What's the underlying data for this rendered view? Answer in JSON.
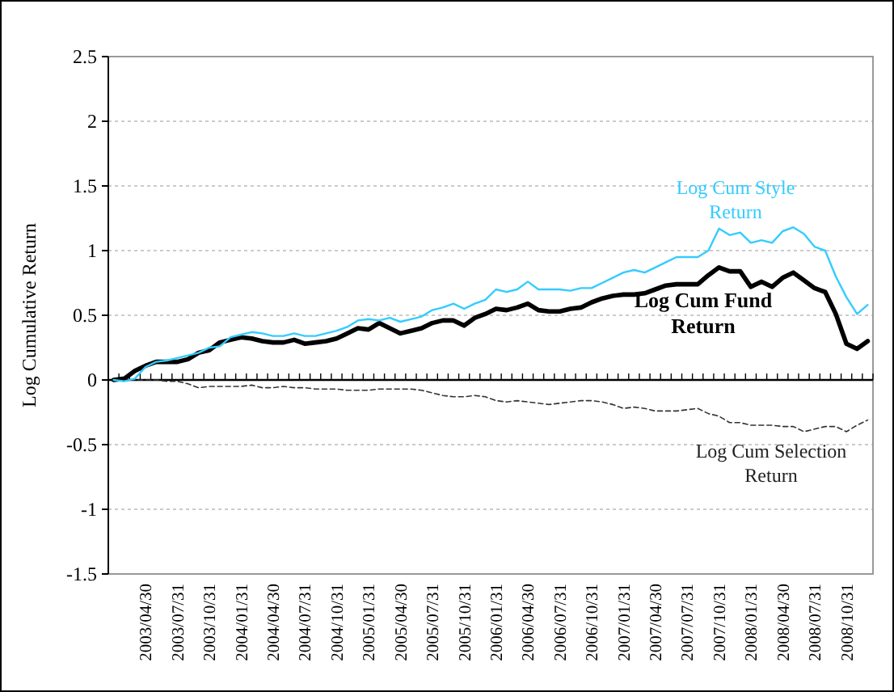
{
  "chart_data": {
    "type": "line",
    "ylabel": "Log Cumulative Return",
    "categories": [
      null,
      null,
      null,
      "2003/04/30",
      null,
      null,
      "2003/07/31",
      null,
      null,
      "2003/10/31",
      null,
      null,
      "2004/01/31",
      null,
      null,
      "2004/04/30",
      null,
      null,
      "2004/07/31",
      null,
      null,
      "2004/10/31",
      null,
      null,
      "2005/01/31",
      null,
      null,
      "2005/04/30",
      null,
      null,
      "2005/07/31",
      null,
      null,
      "2005/10/31",
      null,
      null,
      "2006/01/31",
      null,
      null,
      "2006/04/30",
      null,
      null,
      "2006/07/31",
      null,
      null,
      "2006/10/31",
      null,
      null,
      "2007/01/31",
      null,
      null,
      "2007/04/30",
      null,
      null,
      "2007/07/31",
      null,
      null,
      "2007/10/31",
      null,
      null,
      "2008/01/31",
      null,
      null,
      "2008/04/30",
      null,
      null,
      "2008/07/31",
      null,
      null,
      "2008/10/31",
      null,
      null
    ],
    "series": [
      {
        "name": "Log Cum Style Return",
        "color": "#33ccff",
        "values": [
          0,
          -0.01,
          0.01,
          0.1,
          0.14,
          0.15,
          0.17,
          0.19,
          0.21,
          0.25,
          0.26,
          0.33,
          0.35,
          0.37,
          0.36,
          0.34,
          0.34,
          0.36,
          0.34,
          0.34,
          0.36,
          0.38,
          0.41,
          0.46,
          0.47,
          0.46,
          0.48,
          0.45,
          0.47,
          0.49,
          0.54,
          0.56,
          0.59,
          0.55,
          0.59,
          0.62,
          0.7,
          0.68,
          0.7,
          0.76,
          0.7,
          0.7,
          0.7,
          0.69,
          0.71,
          0.71,
          0.75,
          0.79,
          0.83,
          0.85,
          0.83,
          0.87,
          0.91,
          0.95,
          0.95,
          0.95,
          1.0,
          1.17,
          1.12,
          1.14,
          1.06,
          1.08,
          1.06,
          1.15,
          1.18,
          1.13,
          1.03,
          1.0,
          0.8,
          0.64,
          0.51,
          0.58
        ]
      },
      {
        "name": "Log Cum Fund Return",
        "color": "#000000",
        "values": [
          0,
          0.01,
          0.07,
          0.11,
          0.14,
          0.14,
          0.14,
          0.16,
          0.21,
          0.23,
          0.29,
          0.31,
          0.33,
          0.32,
          0.3,
          0.29,
          0.29,
          0.31,
          0.28,
          0.29,
          0.3,
          0.32,
          0.36,
          0.4,
          0.39,
          0.44,
          0.4,
          0.36,
          0.38,
          0.4,
          0.44,
          0.46,
          0.46,
          0.42,
          0.48,
          0.51,
          0.55,
          0.54,
          0.56,
          0.59,
          0.54,
          0.53,
          0.53,
          0.55,
          0.56,
          0.6,
          0.63,
          0.65,
          0.66,
          0.66,
          0.67,
          0.7,
          0.73,
          0.74,
          0.74,
          0.74,
          0.81,
          0.87,
          0.84,
          0.84,
          0.72,
          0.76,
          0.72,
          0.79,
          0.83,
          0.77,
          0.71,
          0.68,
          0.51,
          0.28,
          0.24,
          0.3
        ]
      },
      {
        "name": "Log Cum Selection Return",
        "color": "#333333",
        "line_style": "dashed",
        "values": [
          0,
          0,
          0,
          0,
          0,
          -0.01,
          -0.01,
          -0.03,
          -0.06,
          -0.05,
          -0.05,
          -0.05,
          -0.05,
          -0.04,
          -0.06,
          -0.06,
          -0.05,
          -0.06,
          -0.06,
          -0.07,
          -0.07,
          -0.07,
          -0.08,
          -0.08,
          -0.08,
          -0.07,
          -0.07,
          -0.07,
          -0.07,
          -0.08,
          -0.1,
          -0.12,
          -0.13,
          -0.13,
          -0.12,
          -0.13,
          -0.16,
          -0.17,
          -0.16,
          -0.17,
          -0.18,
          -0.19,
          -0.18,
          -0.17,
          -0.16,
          -0.16,
          -0.17,
          -0.19,
          -0.22,
          -0.21,
          -0.22,
          -0.24,
          -0.24,
          -0.24,
          -0.23,
          -0.22,
          -0.26,
          -0.28,
          -0.33,
          -0.33,
          -0.35,
          -0.35,
          -0.35,
          -0.36,
          -0.36,
          -0.4,
          -0.38,
          -0.36,
          -0.36,
          -0.4,
          -0.35,
          -0.31
        ]
      }
    ],
    "ylim": [
      -1.5,
      2.5
    ],
    "yticks": [
      -1.5,
      -1,
      -0.5,
      0,
      0.5,
      1,
      1.5,
      2,
      2.5
    ],
    "grid": "y",
    "legend": false,
    "marker": "none",
    "line_style": "solid"
  }
}
